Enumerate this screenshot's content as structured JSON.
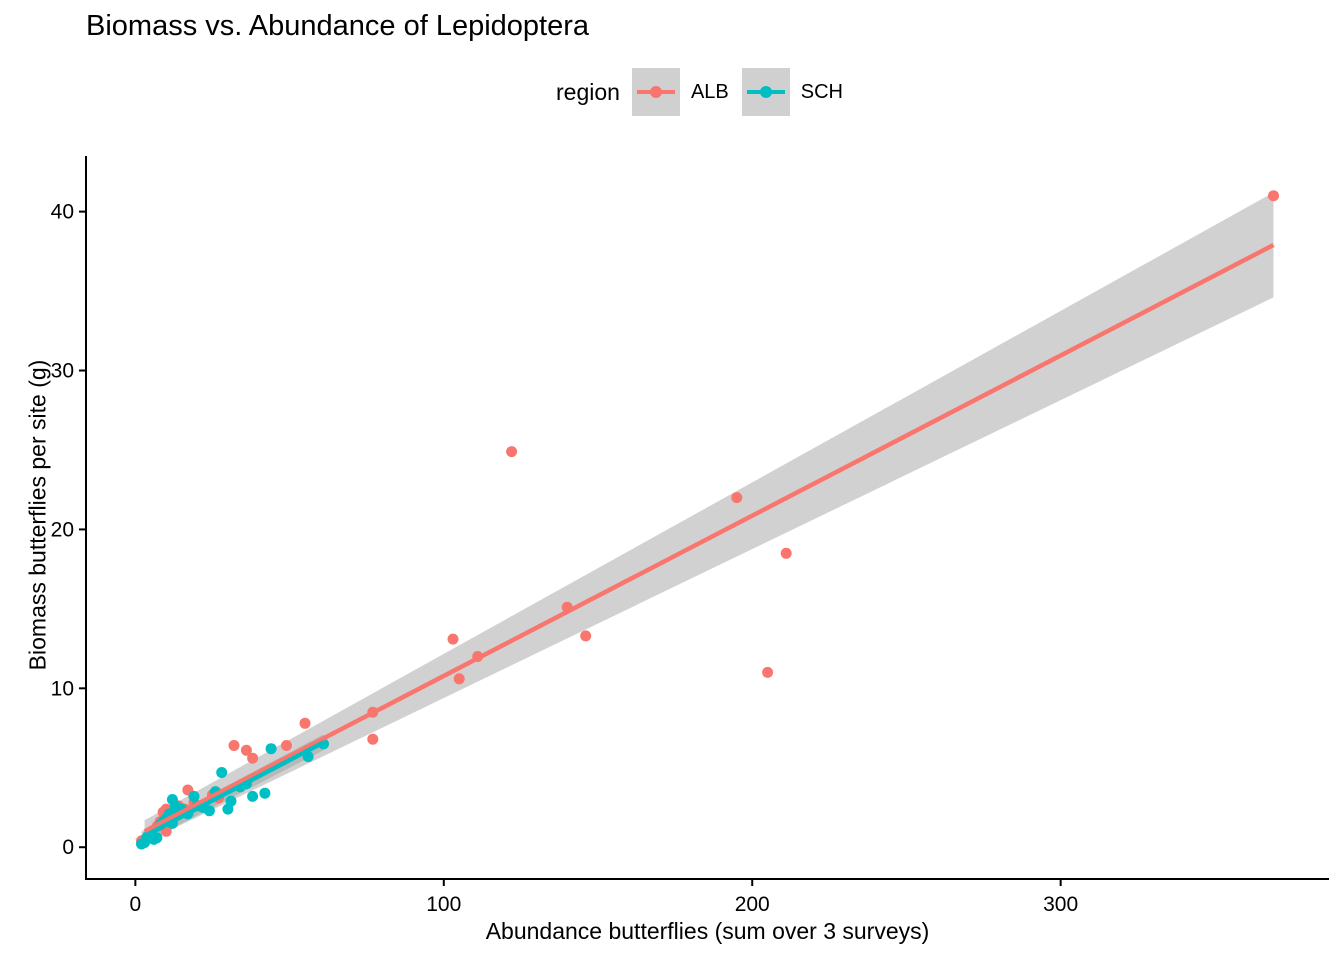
{
  "chart_data": {
    "type": "scatter",
    "title": "Biomass vs. Abundance of Lepidoptera",
    "xlabel": "Abundance butterflies (sum over 3 surveys)",
    "ylabel": "Biomass butterflies per site (g)",
    "xlim": [
      -16,
      387
    ],
    "ylim": [
      -2,
      43.5
    ],
    "xticks": [
      0,
      100,
      200,
      300
    ],
    "yticks": [
      0,
      10,
      20,
      30,
      40
    ],
    "xtick_labels": [
      "0",
      "100",
      "200",
      "300"
    ],
    "ytick_labels": [
      "0",
      "10",
      "20",
      "30",
      "40"
    ],
    "grid": false,
    "legend": {
      "title": "region",
      "position": "top"
    },
    "series": [
      {
        "name": "ALB",
        "color": "#F8766D",
        "points": [
          [
            2,
            0.4
          ],
          [
            5,
            0.8
          ],
          [
            7,
            1.3
          ],
          [
            8,
            1.6
          ],
          [
            9,
            2.2
          ],
          [
            10,
            2.4
          ],
          [
            10,
            1.0
          ],
          [
            11,
            1.8
          ],
          [
            12,
            2.2
          ],
          [
            13,
            2.0
          ],
          [
            14,
            2.6
          ],
          [
            16,
            2.4
          ],
          [
            17,
            3.6
          ],
          [
            19,
            2.8
          ],
          [
            21,
            2.6
          ],
          [
            25,
            3.3
          ],
          [
            27,
            3.1
          ],
          [
            32,
            6.4
          ],
          [
            36,
            6.1
          ],
          [
            38,
            5.6
          ],
          [
            49,
            6.4
          ],
          [
            55,
            7.8
          ],
          [
            77,
            8.5
          ],
          [
            77,
            6.8
          ],
          [
            103,
            13.1
          ],
          [
            105,
            10.6
          ],
          [
            111,
            12.0
          ],
          [
            122,
            24.9
          ],
          [
            140,
            15.1
          ],
          [
            146,
            13.3
          ],
          [
            195,
            22.0
          ],
          [
            205,
            11.0
          ],
          [
            211,
            18.5
          ],
          [
            369,
            41.0
          ]
        ],
        "fit": {
          "x": [
            3,
            369
          ],
          "y": [
            1.0,
            37.9
          ],
          "ci_lower": [
            0.3,
            34.6
          ],
          "ci_upper": [
            1.7,
            41.2
          ]
        }
      },
      {
        "name": "SCH",
        "color": "#00BFC4",
        "points": [
          [
            2,
            0.2
          ],
          [
            3,
            0.3
          ],
          [
            4,
            0.7
          ],
          [
            5,
            0.9
          ],
          [
            6,
            0.5
          ],
          [
            7,
            0.6
          ],
          [
            8,
            1.4
          ],
          [
            9,
            1.6
          ],
          [
            10,
            1.8
          ],
          [
            11,
            2.1
          ],
          [
            12,
            1.5
          ],
          [
            12,
            3.0
          ],
          [
            13,
            2.6
          ],
          [
            14,
            2.2
          ],
          [
            15,
            2.4
          ],
          [
            17,
            2.1
          ],
          [
            19,
            3.2
          ],
          [
            20,
            2.6
          ],
          [
            22,
            2.5
          ],
          [
            24,
            2.3
          ],
          [
            26,
            3.5
          ],
          [
            28,
            4.7
          ],
          [
            30,
            2.4
          ],
          [
            31,
            2.9
          ],
          [
            34,
            3.8
          ],
          [
            36,
            4.0
          ],
          [
            38,
            3.2
          ],
          [
            42,
            3.4
          ],
          [
            44,
            6.2
          ],
          [
            56,
            5.7
          ],
          [
            61,
            6.5
          ]
        ],
        "fit": {
          "x": [
            2,
            61
          ],
          "y": [
            0.6,
            6.6
          ],
          "ci_lower": [
            0.2,
            6.1
          ],
          "ci_upper": [
            1.0,
            7.1
          ]
        }
      }
    ]
  }
}
